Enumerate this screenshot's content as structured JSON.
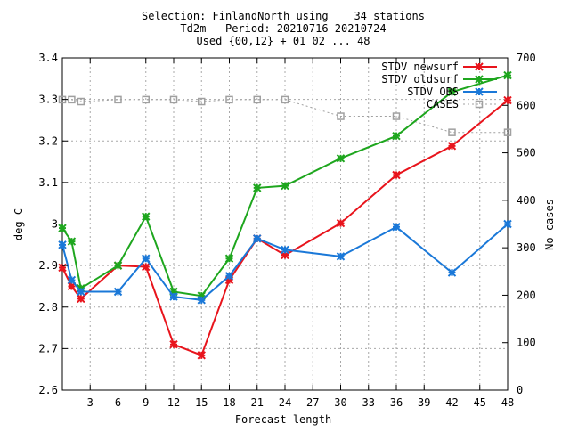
{
  "chart_data": {
    "type": "line",
    "title_lines": [
      "Selection: FinlandNorth using    34 stations",
      "Td2m   Period: 20210716-20210724",
      "Used {00,12} + 01 02 ... 48"
    ],
    "xlabel": "Forecast length",
    "ylabel": "deg C",
    "y2label": "No cases",
    "xlim": [
      0,
      48
    ],
    "ylim": [
      2.6,
      3.4
    ],
    "y2lim": [
      0,
      700
    ],
    "xticks": [
      3,
      6,
      9,
      12,
      15,
      18,
      21,
      24,
      27,
      30,
      33,
      36,
      39,
      42,
      45,
      48
    ],
    "xtick_labels": [
      "3",
      "6",
      "9",
      "12",
      "15",
      "18",
      "21",
      "24",
      "27",
      "30",
      "33",
      "36",
      "39",
      "42",
      "45",
      "48"
    ],
    "yticks": [
      2.6,
      2.7,
      2.8,
      2.9,
      3.0,
      3.1,
      3.2,
      3.3,
      3.4
    ],
    "ytick_labels": [
      "2.6",
      "2.7",
      "2.8",
      "2.9",
      "3",
      "3.1",
      "3.2",
      "3.3",
      "3.4"
    ],
    "y2ticks": [
      0,
      100,
      200,
      300,
      400,
      500,
      600,
      700
    ],
    "y2tick_labels": [
      "0",
      "100",
      "200",
      "300",
      "400",
      "500",
      "600",
      "700"
    ],
    "grid": true,
    "legend_position": "top-right",
    "series": [
      {
        "name": "STDV newsurf",
        "color": "#e8141c",
        "axis": "left",
        "x": [
          0,
          1,
          2,
          6,
          9,
          12,
          15,
          18,
          21,
          24,
          30,
          36,
          42,
          48
        ],
        "y": [
          2.895,
          2.85,
          2.82,
          2.9,
          2.897,
          2.71,
          2.684,
          2.865,
          2.965,
          2.925,
          3.002,
          3.118,
          3.188,
          3.298
        ]
      },
      {
        "name": "STDV oldsurf",
        "color": "#1ea61e",
        "axis": "left",
        "x": [
          0,
          1,
          2,
          6,
          9,
          12,
          15,
          18,
          21,
          24,
          30,
          36,
          42,
          48
        ],
        "y": [
          2.99,
          2.958,
          2.845,
          2.9,
          3.018,
          2.837,
          2.827,
          2.917,
          3.087,
          3.092,
          3.158,
          3.212,
          3.318,
          3.358
        ]
      },
      {
        "name": "STDV OBS",
        "color": "#1a78d8",
        "axis": "left",
        "x": [
          0,
          1,
          2,
          6,
          9,
          12,
          15,
          18,
          21,
          24,
          30,
          36,
          42,
          48
        ],
        "y": [
          2.95,
          2.865,
          2.837,
          2.837,
          2.917,
          2.825,
          2.817,
          2.875,
          2.965,
          2.938,
          2.922,
          2.993,
          2.883,
          3.0
        ]
      },
      {
        "name": "CASES",
        "color": "#a0a0a0",
        "axis": "right",
        "x": [
          0,
          1,
          2,
          6,
          9,
          12,
          15,
          18,
          21,
          24,
          30,
          36,
          42,
          48
        ],
        "y": [
          612,
          612,
          608,
          612,
          612,
          612,
          608,
          612,
          612,
          612,
          577,
          577,
          543,
          543
        ]
      }
    ]
  }
}
